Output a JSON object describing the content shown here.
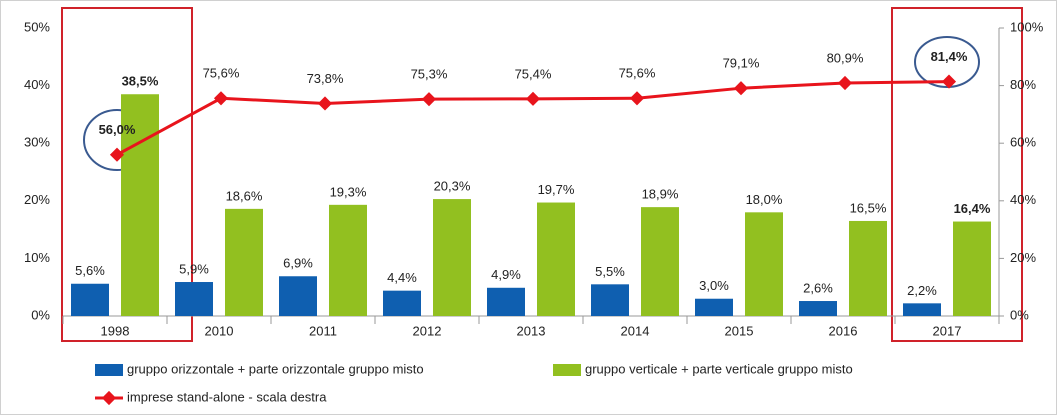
{
  "chart_data": {
    "type": "bar-line",
    "categories": [
      "1998",
      "2010",
      "2011",
      "2012",
      "2013",
      "2014",
      "2015",
      "2016",
      "2017"
    ],
    "series": [
      {
        "name": "gruppo orizzontale + parte orizzontale gruppo misto",
        "color": "#0f5fb0",
        "type": "bar",
        "values": [
          5.6,
          5.9,
          6.9,
          4.4,
          4.9,
          5.5,
          3.0,
          2.6,
          2.2
        ],
        "value_labels": [
          "5,6%",
          "5,9%",
          "6,9%",
          "4,4%",
          "4,9%",
          "5,5%",
          "3,0%",
          "2,6%",
          "2,2%"
        ]
      },
      {
        "name": "gruppo verticale + parte verticale gruppo misto",
        "color": "#92c020",
        "type": "bar",
        "values": [
          38.5,
          18.6,
          19.3,
          20.3,
          19.7,
          18.9,
          18.0,
          16.5,
          16.4
        ],
        "value_labels": [
          "38,5%",
          "18,6%",
          "19,3%",
          "20,3%",
          "19,7%",
          "18,9%",
          "18,0%",
          "16,5%",
          "16,4%"
        ]
      },
      {
        "name": "imprese stand-alone - scala destra",
        "color": "#e8141c",
        "type": "line",
        "axis": "y2",
        "values": [
          56.0,
          75.6,
          73.8,
          75.3,
          75.4,
          75.6,
          79.1,
          80.9,
          81.4
        ],
        "value_labels": [
          "56,0%",
          "75,6%",
          "73,8%",
          "75,3%",
          "75,4%",
          "75,6%",
          "79,1%",
          "80,9%",
          "81,4%"
        ]
      }
    ],
    "ylim": [
      0,
      50
    ],
    "yticks": [
      {
        "value": 0,
        "label": "0%"
      },
      {
        "value": 10,
        "label": "10%"
      },
      {
        "value": 20,
        "label": "20%"
      },
      {
        "value": 30,
        "label": "30%"
      },
      {
        "value": 40,
        "label": "40%"
      },
      {
        "value": 50,
        "label": "50%"
      }
    ],
    "y2lim": [
      0,
      100
    ],
    "y2ticks": [
      {
        "value": 0,
        "label": "0%"
      },
      {
        "value": 20,
        "label": "20%"
      },
      {
        "value": 40,
        "label": "40%"
      },
      {
        "value": 60,
        "label": "60%"
      },
      {
        "value": 80,
        "label": "80%"
      },
      {
        "value": 100,
        "label": "100%"
      }
    ],
    "grid": false,
    "legend": "bottom"
  }
}
